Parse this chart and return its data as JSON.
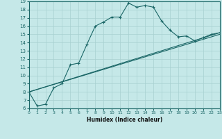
{
  "xlabel": "Humidex (Indice chaleur)",
  "ylabel": "",
  "xlim": [
    0,
    23
  ],
  "ylim": [
    6,
    19
  ],
  "xticks": [
    0,
    1,
    2,
    3,
    4,
    5,
    6,
    7,
    8,
    9,
    10,
    11,
    12,
    13,
    14,
    15,
    16,
    17,
    18,
    19,
    20,
    21,
    22,
    23
  ],
  "yticks": [
    6,
    7,
    8,
    9,
    10,
    11,
    12,
    13,
    14,
    15,
    16,
    17,
    18,
    19
  ],
  "background_color": "#c5e8e8",
  "grid_color": "#a8d0d0",
  "line_color": "#1a6666",
  "line1_x": [
    0,
    1,
    2,
    3,
    4,
    5,
    6,
    7,
    8,
    9,
    10,
    11,
    12,
    13,
    14,
    15,
    16,
    17,
    18,
    19,
    20,
    21,
    22,
    23
  ],
  "line1_y": [
    8.0,
    6.3,
    6.5,
    8.5,
    9.0,
    11.3,
    11.5,
    13.8,
    16.0,
    16.5,
    17.1,
    17.1,
    18.8,
    18.3,
    18.5,
    18.3,
    16.6,
    15.5,
    14.7,
    14.8,
    14.2,
    14.6,
    15.0,
    15.2
  ],
  "line2_x": [
    0,
    23
  ],
  "line2_y": [
    8.0,
    15.2
  ],
  "line3_x": [
    0,
    23
  ],
  "line3_y": [
    8.0,
    15.0
  ]
}
